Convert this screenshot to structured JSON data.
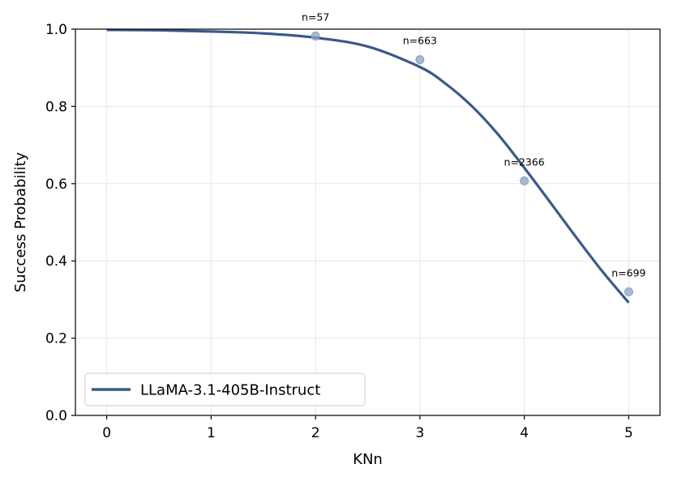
{
  "chart_data": {
    "type": "line",
    "xlabel": "KNn",
    "ylabel": "Success Probability",
    "xlim": [
      -0.3,
      5.3
    ],
    "ylim": [
      0.0,
      1.0
    ],
    "xticks": [
      0,
      1,
      2,
      3,
      4,
      5
    ],
    "yticks": [
      0.0,
      0.2,
      0.4,
      0.6,
      0.8,
      1.0
    ],
    "xtick_labels": [
      "0",
      "1",
      "2",
      "3",
      "4",
      "5"
    ],
    "ytick_labels": [
      "0.0",
      "0.2",
      "0.4",
      "0.6",
      "0.8",
      "1.0"
    ],
    "grid": true,
    "legend_position": "lower-left",
    "series": [
      {
        "name": "LLaMA-3.1-405B-Instruct",
        "color": "#3a5a8a",
        "curve": {
          "x": [
            0,
            0.5,
            1,
            1.5,
            2,
            2.5,
            3,
            3.25,
            3.5,
            3.75,
            4,
            4.25,
            4.5,
            4.75,
            5
          ],
          "y": [
            0.998,
            0.997,
            0.994,
            0.989,
            0.978,
            0.955,
            0.902,
            0.858,
            0.8,
            0.727,
            0.641,
            0.551,
            0.46,
            0.372,
            0.292
          ]
        },
        "points": {
          "x": [
            2,
            3,
            4,
            5
          ],
          "y": [
            0.982,
            0.921,
            0.607,
            0.32
          ],
          "labels": [
            "n=57",
            "n=663",
            "n=2366",
            "n=699"
          ]
        }
      }
    ]
  }
}
